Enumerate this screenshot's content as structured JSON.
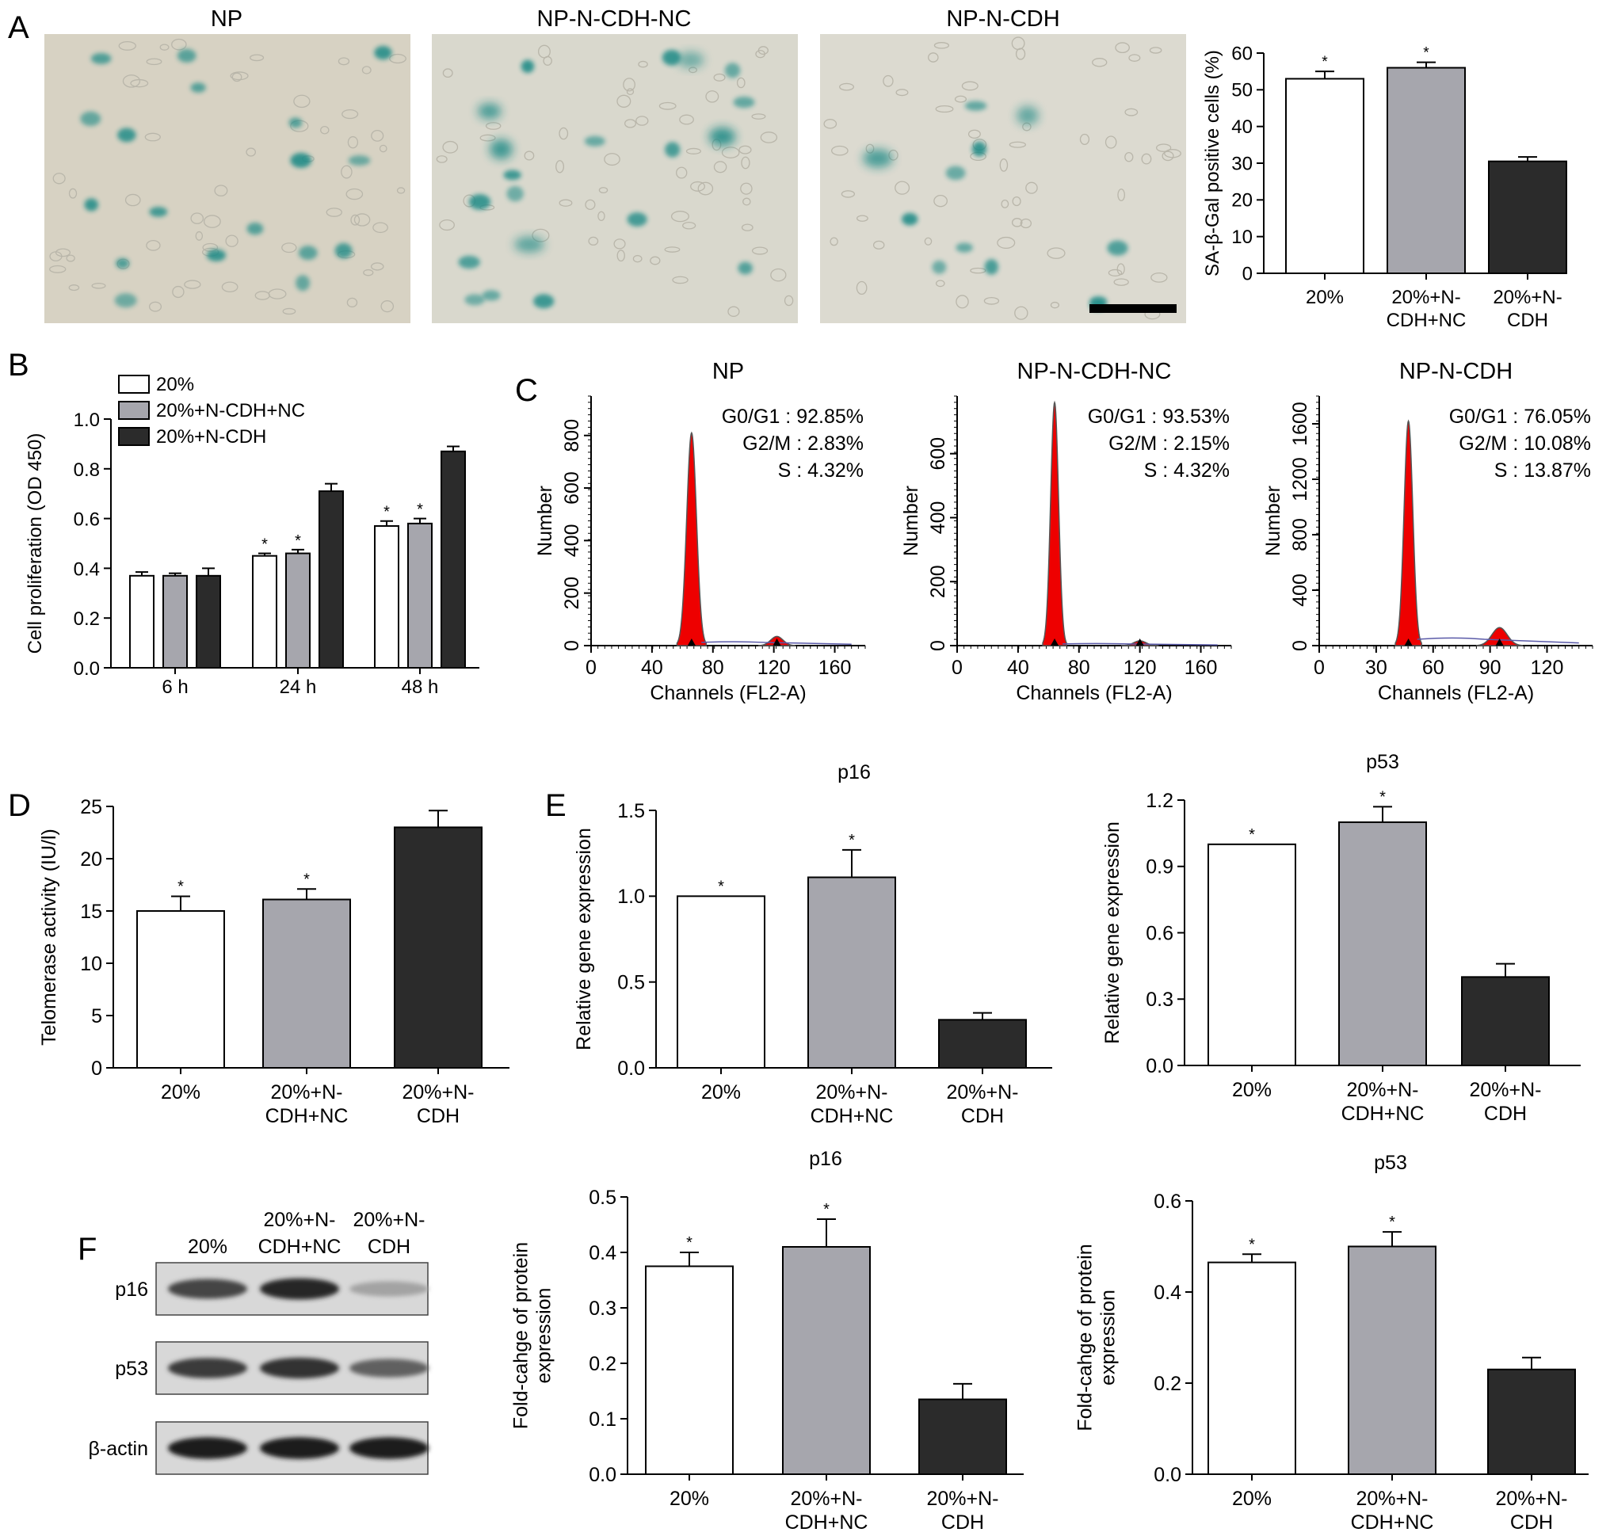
{
  "colors": {
    "white_bar": "#ffffff",
    "gray_bar": "#a6a6ad",
    "black_bar": "#2b2b2b",
    "histogram_fill": "#ee0000",
    "stain": "#1f8a86"
  },
  "panel_letters": [
    "A",
    "B",
    "C",
    "D",
    "E",
    "F"
  ],
  "panel_a": {
    "micrographs": [
      "NP",
      "NP-N-CDH-NC",
      "NP-N-CDH"
    ],
    "chart": {
      "type": "bar",
      "ylabel": "SA-β-Gal positive cells (%)",
      "ylim": [
        0,
        60
      ],
      "yticks": [
        "0",
        "10",
        "20",
        "30",
        "40",
        "50",
        "60"
      ],
      "categories": [
        [
          "20%"
        ],
        [
          "20%+N-",
          "CDH+NC"
        ],
        [
          "20%+N-",
          "CDH"
        ]
      ],
      "values": [
        53,
        56,
        30.5
      ],
      "errors": [
        2,
        1.5,
        1.2
      ],
      "significance": [
        "*",
        "*",
        ""
      ]
    }
  },
  "panel_b": {
    "chart": {
      "type": "bar",
      "ylabel": "Cell proliferation (OD 450)",
      "ylim": [
        0,
        1.0
      ],
      "yticks": [
        "0.0",
        "0.2",
        "0.4",
        "0.6",
        "0.8",
        "1.0"
      ],
      "categories": [
        "6 h",
        "24 h",
        "48 h"
      ],
      "legend": [
        "20%",
        "20%+N-CDH+NC",
        "20%+N-CDH"
      ],
      "series": [
        {
          "values": [
            0.37,
            0.45,
            0.57
          ],
          "errors": [
            0.015,
            0.01,
            0.02
          ],
          "significance": [
            "",
            "*",
            "*"
          ]
        },
        {
          "values": [
            0.37,
            0.46,
            0.58
          ],
          "errors": [
            0.01,
            0.015,
            0.02
          ],
          "significance": [
            "",
            "*",
            "*"
          ]
        },
        {
          "values": [
            0.37,
            0.71,
            0.87
          ],
          "errors": [
            0.03,
            0.03,
            0.02
          ],
          "significance": [
            "",
            "",
            ""
          ]
        }
      ]
    }
  },
  "panel_c": {
    "histograms": [
      {
        "title": "NP",
        "ylabel": "Number",
        "xlabel": "Channels (FL2-A)",
        "stats": [
          "G0/G1 : 92.85%",
          "G2/M : 2.83%",
          "S : 4.32%"
        ],
        "xticks": [
          "0",
          "40",
          "80",
          "120",
          "160"
        ],
        "yticks": [
          "0",
          "200",
          "400",
          "600",
          "800"
        ]
      },
      {
        "title": "NP-N-CDH-NC",
        "ylabel": "Number",
        "xlabel": "Channels (FL2-A)",
        "stats": [
          "G0/G1 : 93.53%",
          "G2/M : 2.15%",
          "S : 4.32%"
        ],
        "xticks": [
          "0",
          "40",
          "80",
          "120",
          "160"
        ],
        "yticks": [
          "0",
          "200",
          "400",
          "600"
        ]
      },
      {
        "title": "NP-N-CDH",
        "ylabel": "Number",
        "xlabel": "Channels (FL2-A)",
        "stats": [
          "G0/G1 : 76.05%",
          "G2/M : 10.08%",
          "S : 13.87%"
        ],
        "xticks": [
          "0",
          "30",
          "60",
          "90",
          "120"
        ],
        "yticks": [
          "0",
          "400",
          "800",
          "1200",
          "1600"
        ]
      }
    ]
  },
  "panel_d": {
    "chart": {
      "type": "bar",
      "ylabel": "Telomerase activity (IU/l)",
      "ylim": [
        0,
        25
      ],
      "yticks": [
        "0",
        "5",
        "10",
        "15",
        "20",
        "25"
      ],
      "categories": [
        [
          "20%"
        ],
        [
          "20%+N-",
          "CDH+NC"
        ],
        [
          "20%+N-",
          "CDH"
        ]
      ],
      "values": [
        15,
        16.1,
        23
      ],
      "errors": [
        1.4,
        1.0,
        1.6
      ],
      "significance": [
        "*",
        "*",
        ""
      ]
    }
  },
  "panel_e": {
    "charts": [
      {
        "type": "bar",
        "title": "p16",
        "ylabel": "Relative gene expression",
        "ylim": [
          0,
          1.5
        ],
        "yticks": [
          "0.0",
          "0.5",
          "1.0",
          "1.5"
        ],
        "categories": [
          [
            "20%"
          ],
          [
            "20%+N-",
            "CDH+NC"
          ],
          [
            "20%+N-",
            "CDH"
          ]
        ],
        "values": [
          1.0,
          1.11,
          0.28
        ],
        "errors": [
          0,
          0.16,
          0.04
        ],
        "significance": [
          "*",
          "*",
          ""
        ]
      },
      {
        "type": "bar",
        "title": "p53",
        "ylabel": "Relative gene expression",
        "ylim": [
          0,
          1.2
        ],
        "yticks": [
          "0.0",
          "0.3",
          "0.6",
          "0.9",
          "1.2"
        ],
        "categories": [
          [
            "20%"
          ],
          [
            "20%+N-",
            "CDH+NC"
          ],
          [
            "20%+N-",
            "CDH"
          ]
        ],
        "values": [
          1.0,
          1.1,
          0.4
        ],
        "errors": [
          0,
          0.07,
          0.06
        ],
        "significance": [
          "*",
          "*",
          ""
        ]
      }
    ]
  },
  "panel_f": {
    "blot": {
      "lanes": [
        [
          "20%"
        ],
        [
          "20%+N-",
          "CDH+NC"
        ],
        [
          "20%+N-",
          "CDH"
        ]
      ],
      "rows": [
        "p16",
        "p53",
        "β-actin"
      ],
      "intensity": [
        [
          0.75,
          0.9,
          0.25
        ],
        [
          0.8,
          0.85,
          0.6
        ],
        [
          0.95,
          0.95,
          0.95
        ]
      ]
    },
    "charts": [
      {
        "type": "bar",
        "title": "p16",
        "ylabel": [
          "Fold-cahge of protein",
          "expression"
        ],
        "ylim": [
          0,
          0.5
        ],
        "yticks": [
          "0.0",
          "0.1",
          "0.2",
          "0.3",
          "0.4",
          "0.5"
        ],
        "categories": [
          [
            "20%"
          ],
          [
            "20%+N-",
            "CDH+NC"
          ],
          [
            "20%+N-",
            "CDH"
          ]
        ],
        "values": [
          0.375,
          0.41,
          0.135
        ],
        "errors": [
          0.025,
          0.05,
          0.028
        ],
        "significance": [
          "*",
          "*",
          ""
        ]
      },
      {
        "type": "bar",
        "title": "p53",
        "ylabel": [
          "Fold-cahge of protein",
          "expression"
        ],
        "ylim": [
          0,
          0.6
        ],
        "yticks": [
          "0.0",
          "0.2",
          "0.4",
          "0.6"
        ],
        "categories": [
          [
            "20%"
          ],
          [
            "20%+N-",
            "CDH+NC"
          ],
          [
            "20%+N-",
            "CDH"
          ]
        ],
        "values": [
          0.465,
          0.5,
          0.23
        ],
        "errors": [
          0.018,
          0.032,
          0.026
        ],
        "significance": [
          "*",
          "*",
          ""
        ]
      }
    ]
  }
}
